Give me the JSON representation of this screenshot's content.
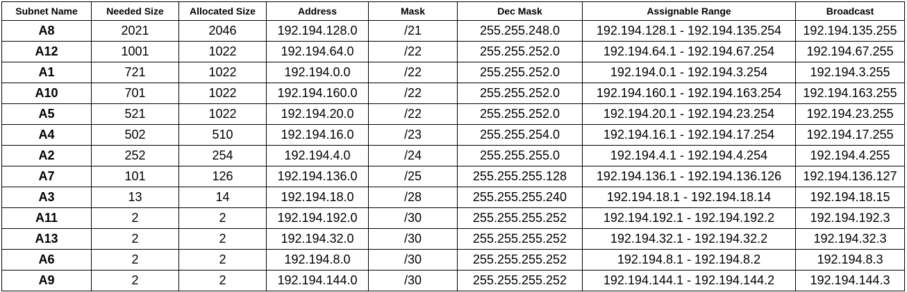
{
  "table": {
    "headers": [
      "Subnet Name",
      "Needed Size",
      "Allocated Size",
      "Address",
      "Mask",
      "Dec Mask",
      "Assignable Range",
      "Broadcast"
    ],
    "rows": [
      [
        "A8",
        "2021",
        "2046",
        "192.194.128.0",
        "/21",
        "255.255.248.0",
        "192.194.128.1 - 192.194.135.254",
        "192.194.135.255"
      ],
      [
        "A12",
        "1001",
        "1022",
        "192.194.64.0",
        "/22",
        "255.255.252.0",
        "192.194.64.1 - 192.194.67.254",
        "192.194.67.255"
      ],
      [
        "A1",
        "721",
        "1022",
        "192.194.0.0",
        "/22",
        "255.255.252.0",
        "192.194.0.1 - 192.194.3.254",
        "192.194.3.255"
      ],
      [
        "A10",
        "701",
        "1022",
        "192.194.160.0",
        "/22",
        "255.255.252.0",
        "192.194.160.1 - 192.194.163.254",
        "192.194.163.255"
      ],
      [
        "A5",
        "521",
        "1022",
        "192.194.20.0",
        "/22",
        "255.255.252.0",
        "192.194.20.1 - 192.194.23.254",
        "192.194.23.255"
      ],
      [
        "A4",
        "502",
        "510",
        "192.194.16.0",
        "/23",
        "255.255.254.0",
        "192.194.16.1 - 192.194.17.254",
        "192.194.17.255"
      ],
      [
        "A2",
        "252",
        "254",
        "192.194.4.0",
        "/24",
        "255.255.255.0",
        "192.194.4.1 - 192.194.4.254",
        "192.194.4.255"
      ],
      [
        "A7",
        "101",
        "126",
        "192.194.136.0",
        "/25",
        "255.255.255.128",
        "192.194.136.1 - 192.194.136.126",
        "192.194.136.127"
      ],
      [
        "A3",
        "13",
        "14",
        "192.194.18.0",
        "/28",
        "255.255.255.240",
        "192.194.18.1 - 192.194.18.14",
        "192.194.18.15"
      ],
      [
        "A11",
        "2",
        "2",
        "192.194.192.0",
        "/30",
        "255.255.255.252",
        "192.194.192.1 - 192.194.192.2",
        "192.194.192.3"
      ],
      [
        "A13",
        "2",
        "2",
        "192.194.32.0",
        "/30",
        "255.255.255.252",
        "192.194.32.1 - 192.194.32.2",
        "192.194.32.3"
      ],
      [
        "A6",
        "2",
        "2",
        "192.194.8.0",
        "/30",
        "255.255.255.252",
        "192.194.8.1 - 192.194.8.2",
        "192.194.8.3"
      ],
      [
        "A9",
        "2",
        "2",
        "192.194.144.0",
        "/30",
        "255.255.255.252",
        "192.194.144.1 - 192.194.144.2",
        "192.194.144.3"
      ]
    ]
  }
}
